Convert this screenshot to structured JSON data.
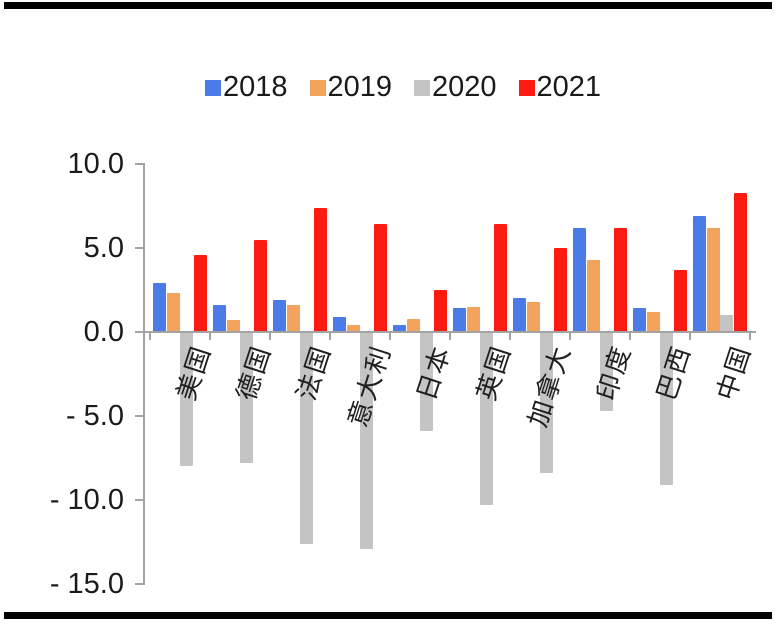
{
  "chart_data": {
    "type": "bar",
    "title": "",
    "xlabel": "",
    "ylabel": "",
    "categories": [
      "美国",
      "德国",
      "法国",
      "意大利",
      "日本",
      "英国",
      "加拿大",
      "印度",
      "巴西",
      "中国"
    ],
    "series": [
      {
        "name": "2018",
        "color": "#4a7be6",
        "values": [
          2.9,
          1.6,
          1.9,
          0.9,
          0.4,
          1.4,
          2.0,
          6.2,
          1.4,
          6.9
        ]
      },
      {
        "name": "2019",
        "color": "#f2a45c",
        "values": [
          2.3,
          0.7,
          1.6,
          0.4,
          0.8,
          1.5,
          1.8,
          4.3,
          1.2,
          6.2
        ]
      },
      {
        "name": "2020",
        "color": "#c4c4c4",
        "values": [
          -8.0,
          -7.8,
          -12.6,
          -12.9,
          -5.9,
          -10.3,
          -8.4,
          -4.7,
          -9.1,
          1.0
        ]
      },
      {
        "name": "2021",
        "color": "#fc1b10",
        "values": [
          4.6,
          5.5,
          7.4,
          6.4,
          2.5,
          6.4,
          5.0,
          6.2,
          3.7,
          8.3
        ]
      }
    ],
    "y_axis": {
      "range": [
        -15,
        10
      ],
      "ticks": [
        {
          "value": 10,
          "label": "10.0"
        },
        {
          "value": 5,
          "label": "5.0"
        },
        {
          "value": 0,
          "label": "0.0"
        },
        {
          "value": -5,
          "label": "- 5.0"
        },
        {
          "value": -10,
          "label": "- 10.0"
        },
        {
          "value": -15,
          "label": "- 15.0"
        }
      ]
    },
    "grid": false,
    "legend_position": "top-center"
  },
  "style": {
    "background": "#ffffff",
    "frame_bar_color": "#000000",
    "axis_color": "#a3a3a3",
    "text_color": "#1a1a1a"
  }
}
